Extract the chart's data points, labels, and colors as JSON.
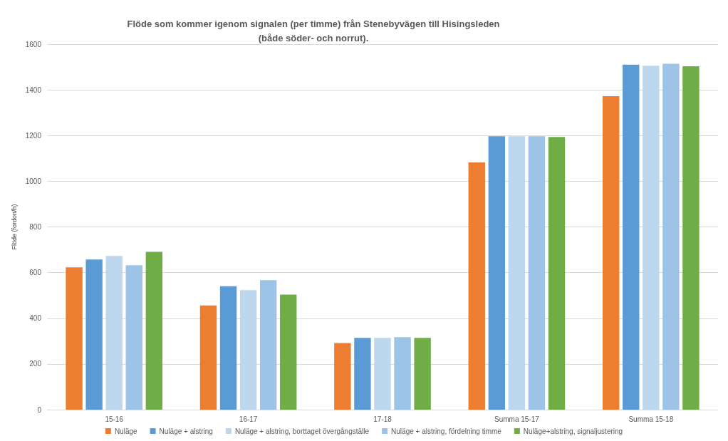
{
  "chart_data": {
    "type": "bar",
    "title": "Flöde som kommer igenom signalen (per timme) från Stenebyvägen till Hisingsleden\n(både söder- och norrut).",
    "ylabel": "Flöde (fordon/h)",
    "categories": [
      "15-16",
      "16-17",
      "17-18",
      "Summa 15-17",
      "Summa 15-18"
    ],
    "series": [
      {
        "name": "Nuläge",
        "color": "#ed7d31",
        "values": [
          623,
          456,
          292,
          1082,
          1372
        ]
      },
      {
        "name": "Nuläge + alstring",
        "color": "#5b9bd5",
        "values": [
          657,
          540,
          314,
          1197,
          1510
        ]
      },
      {
        "name": "Nuläge + alstring, borttaget övergångställe",
        "color": "#bdd7ee",
        "values": [
          673,
          523,
          314,
          1197,
          1506
        ]
      },
      {
        "name": "Nuläge + alstring, fördelning timme",
        "color": "#9dc3e6",
        "values": [
          632,
          567,
          317,
          1197,
          1514
        ]
      },
      {
        "name": "Nuläge+alstring, signaljustering",
        "color": "#70ad47",
        "values": [
          691,
          504,
          314,
          1194,
          1503
        ]
      }
    ],
    "ylim": [
      0,
      1600
    ],
    "yticks": [
      0,
      200,
      400,
      600,
      800,
      1000,
      1200,
      1400,
      1600
    ],
    "grid": "y",
    "legend": "bottom"
  }
}
